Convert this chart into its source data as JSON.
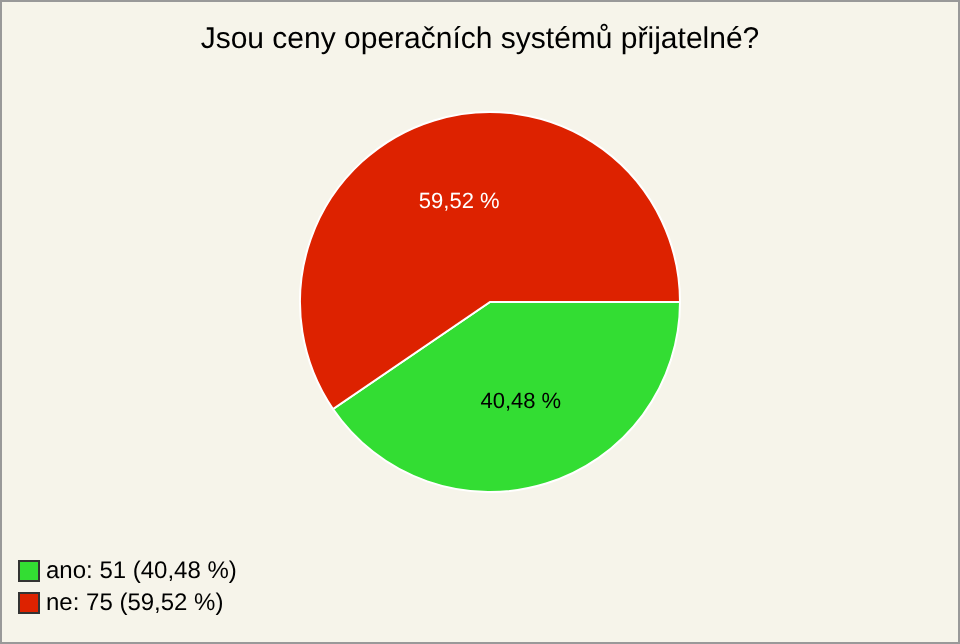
{
  "chart_data": {
    "type": "pie",
    "title": "Jsou ceny operačních systémů přijatelné?",
    "categories": [
      "ano: 51 (40,48 %)",
      "ne: 75 (59,52 %)"
    ],
    "values": [
      40.48,
      59.52
    ],
    "colors": [
      "#33dd33",
      "#dd2200"
    ],
    "value_labels": [
      "40,48 %",
      "59,52 %"
    ],
    "legend": "bottom left"
  }
}
